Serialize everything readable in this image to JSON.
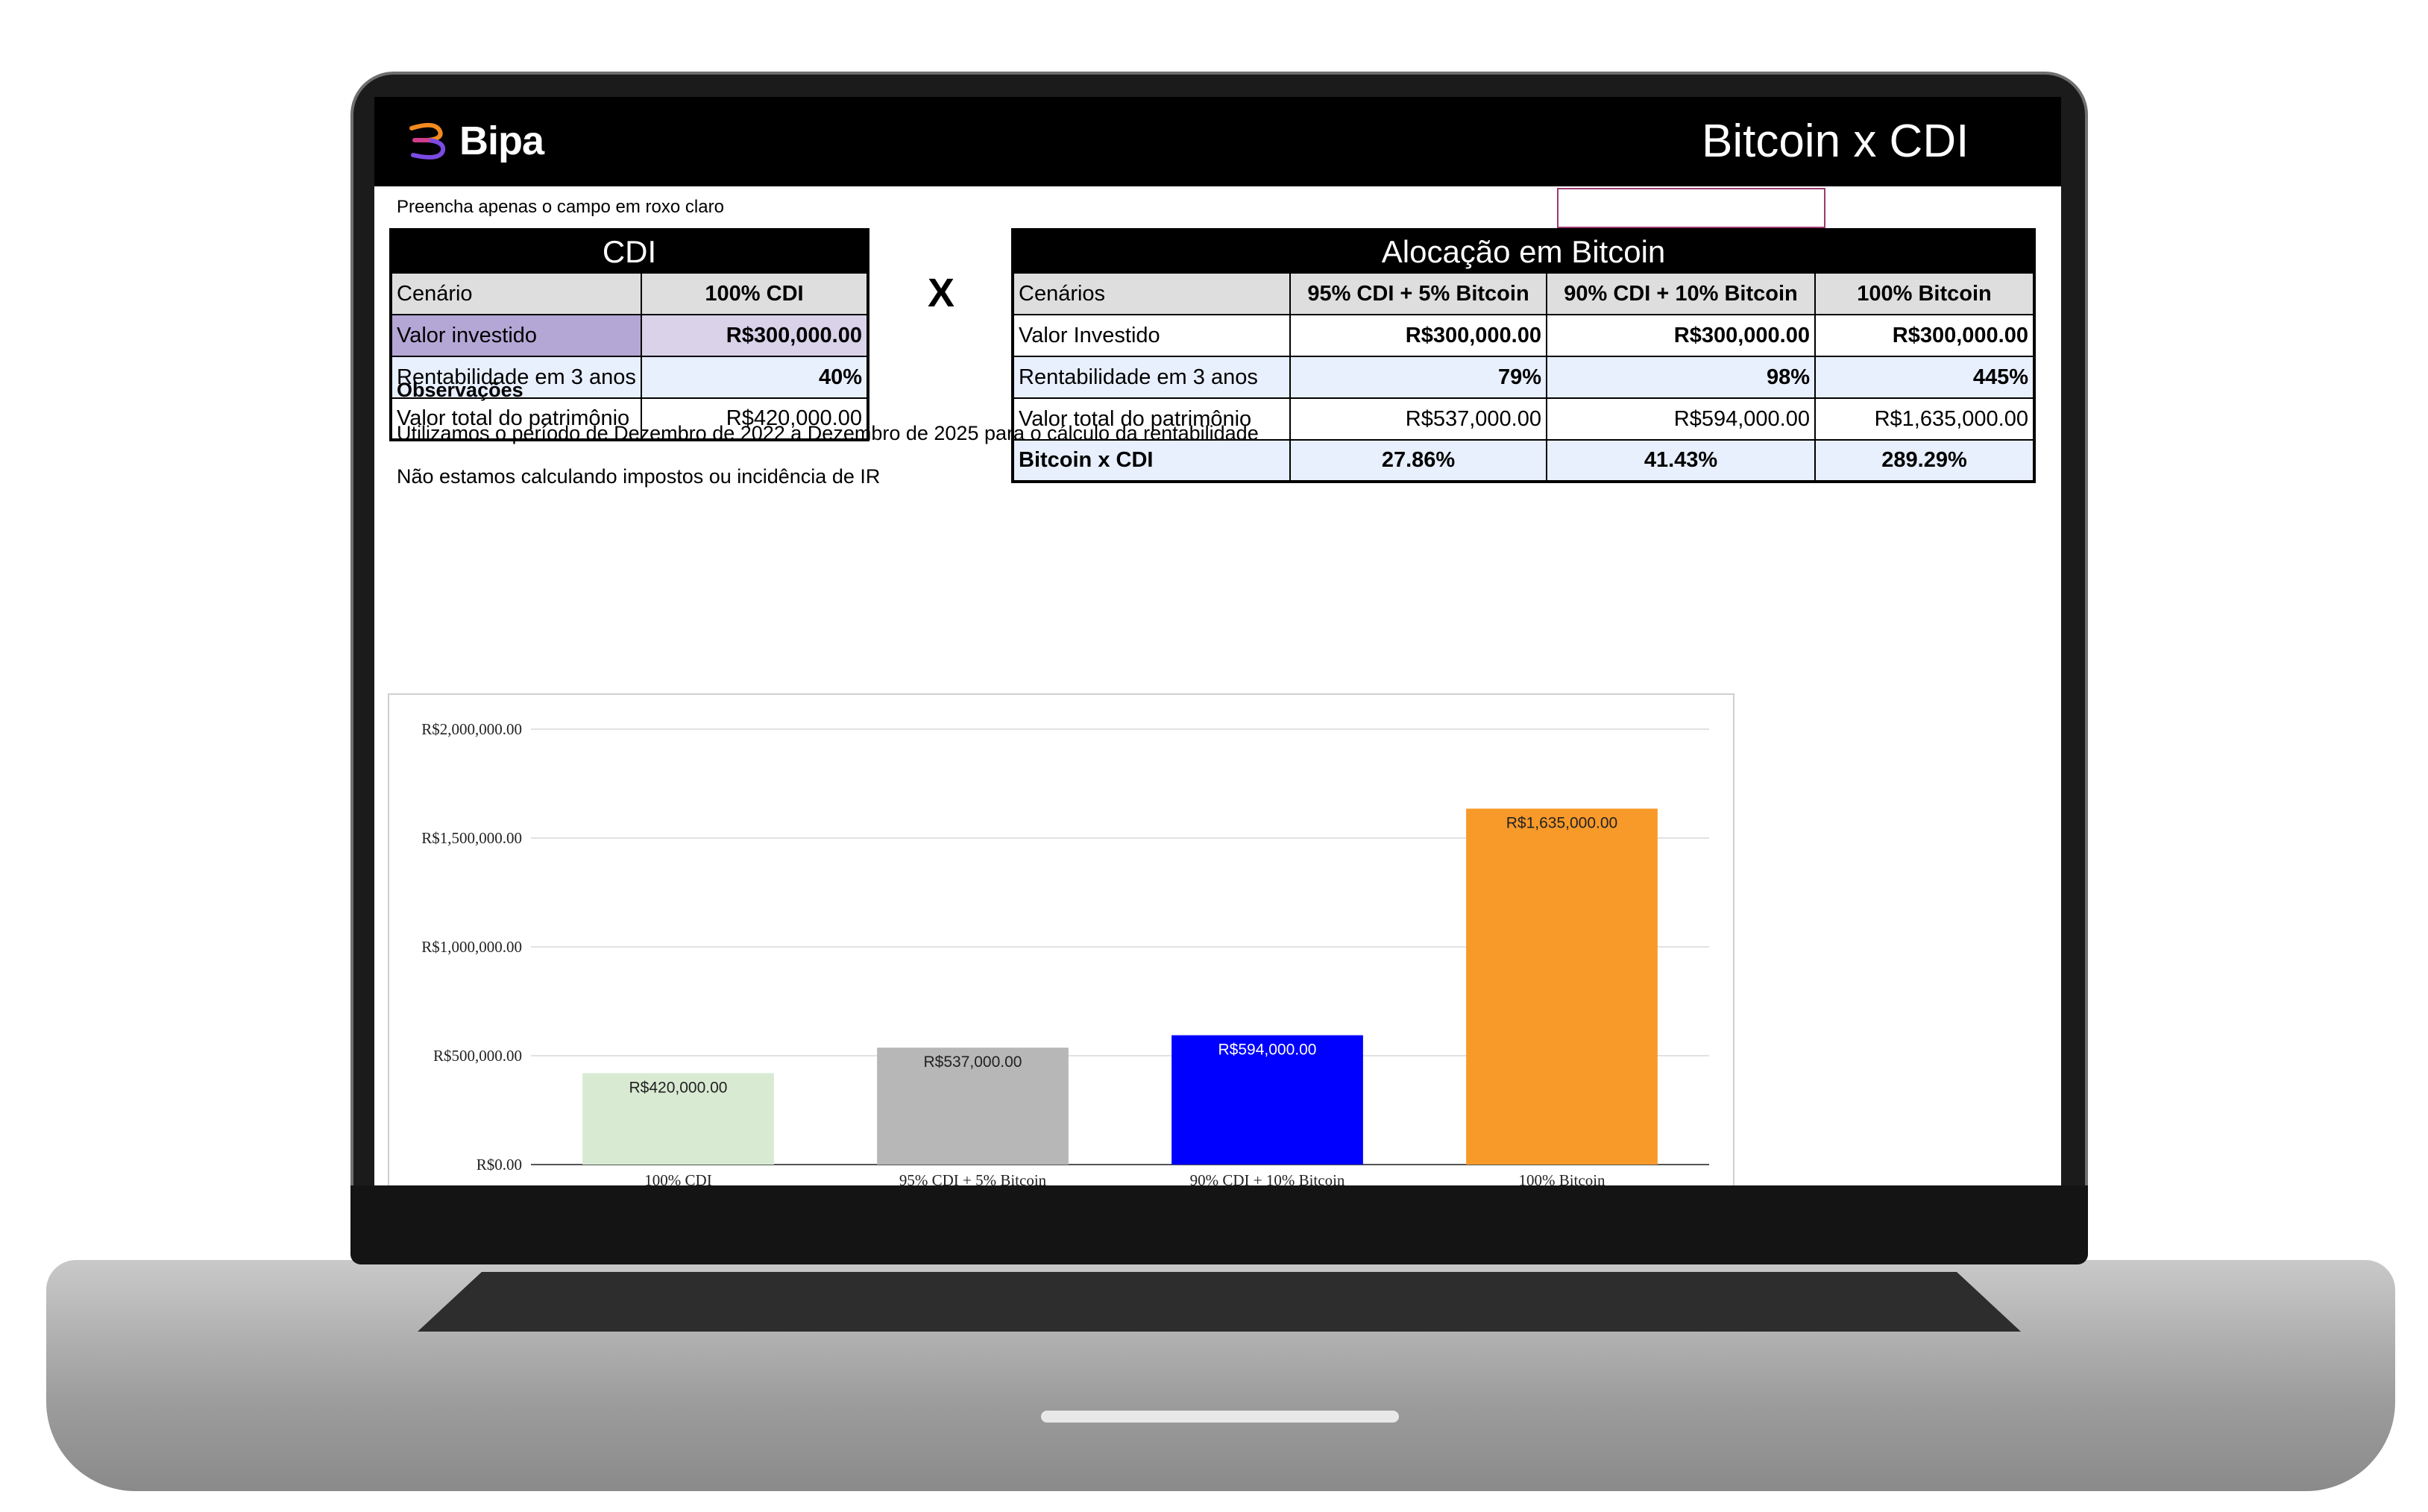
{
  "header": {
    "brand": "Bipa",
    "title": "Bitcoin x CDI"
  },
  "hint": "Preencha apenas o campo em roxo claro",
  "cdi_table": {
    "title": "CDI",
    "header": [
      "Cenário",
      "100% CDI"
    ],
    "rows": [
      {
        "label": "Valor investido",
        "value": "R$300,000.00"
      },
      {
        "label": "Rentabilidade em 3 anos",
        "value": "40%"
      },
      {
        "label": "Valor total do patrimônio",
        "value": "R$420,000.00"
      }
    ]
  },
  "vs_label": "X",
  "btc_table": {
    "title": "Alocação em Bitcoin",
    "header": [
      "Cenários",
      "95% CDI + 5% Bitcoin",
      "90% CDI + 10% Bitcoin",
      "100% Bitcoin"
    ],
    "rows": [
      {
        "label": "Valor Investido",
        "values": [
          "R$300,000.00",
          "R$300,000.00",
          "R$300,000.00"
        ]
      },
      {
        "label": "Rentabilidade em 3 anos",
        "values": [
          "79%",
          "98%",
          "445%"
        ]
      },
      {
        "label": "Valor total do patrimônio",
        "values": [
          "R$537,000.00",
          "R$594,000.00",
          "R$1,635,000.00"
        ]
      },
      {
        "label": "Bitcoin x CDI",
        "values": [
          "27.86%",
          "41.43%",
          "289.29%"
        ]
      }
    ]
  },
  "observations": {
    "title": "Observações",
    "lines": [
      "Utilizamos o período de Dezembro de 2022 a Dezembro de 2025 para o cálculo da rentabilidade",
      "Não estamos calculando impostos ou incidência de IR"
    ]
  },
  "colors": {
    "bar_cdi": "#d9ead3",
    "bar_95": "#b7b7b7",
    "bar_90": "#0000ff",
    "bar_100": "#f89a2a"
  },
  "chart_data": {
    "type": "bar",
    "categories": [
      "100% CDI",
      "95% CDI + 5% Bitcoin",
      "90% CDI + 10% Bitcoin",
      "100% Bitcoin"
    ],
    "values": [
      420000,
      537000,
      594000,
      1635000
    ],
    "data_labels": [
      "R$420,000.00",
      "R$537,000.00",
      "R$594,000.00",
      "R$1,635,000.00"
    ],
    "bar_colors": [
      "#d9ead3",
      "#b7b7b7",
      "#0000ff",
      "#f89a2a"
    ],
    "label_colors": [
      "#222222",
      "#222222",
      "#ffffff",
      "#222222"
    ],
    "y_ticks": [
      0,
      500000,
      1000000,
      1500000,
      2000000
    ],
    "y_tick_labels": [
      "R$0.00",
      "R$500,000.00",
      "R$1,000,000.00",
      "R$1,500,000.00",
      "R$2,000,000.00"
    ],
    "ylim": [
      0,
      2000000
    ],
    "grid": true,
    "title": "",
    "xlabel": "",
    "ylabel": ""
  }
}
